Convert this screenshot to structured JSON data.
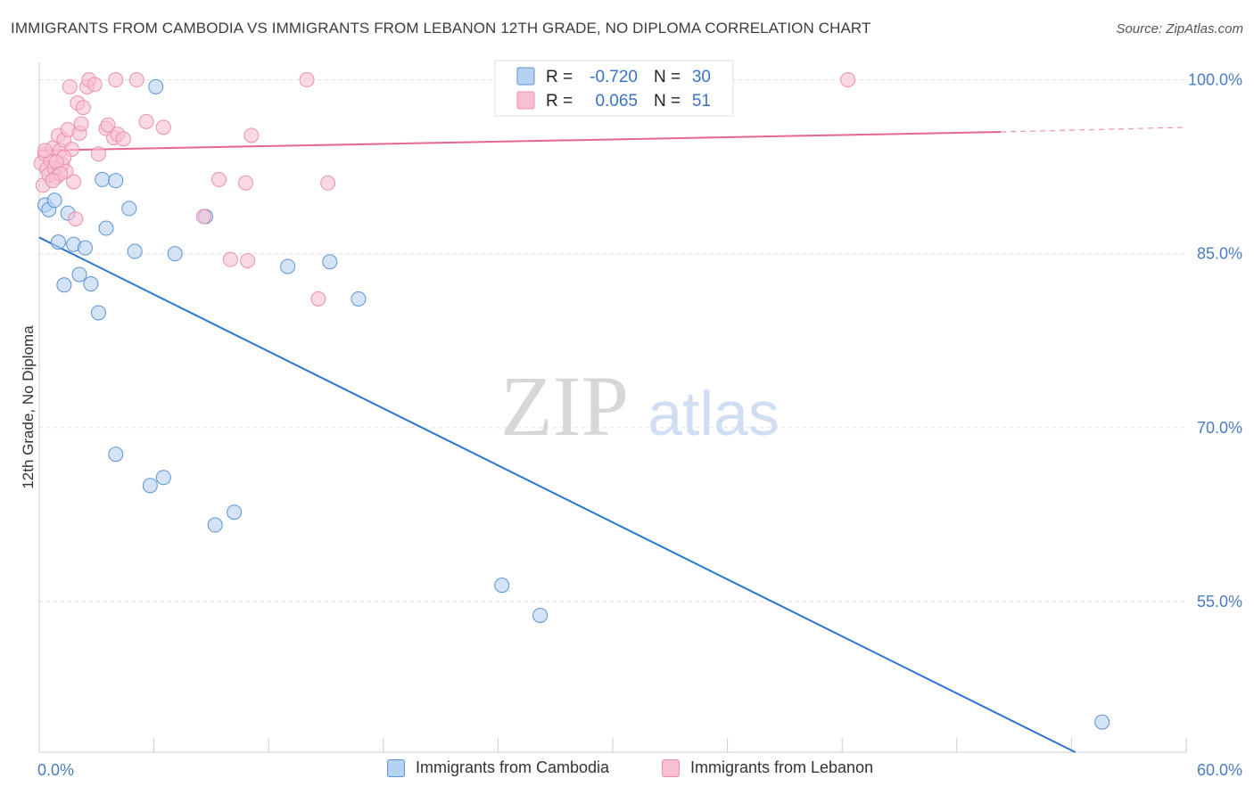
{
  "title": "IMMIGRANTS FROM CAMBODIA VS IMMIGRANTS FROM LEBANON 12TH GRADE, NO DIPLOMA CORRELATION CHART",
  "source": "Source: ZipAtlas.com",
  "watermark": {
    "zip": "ZIP",
    "atlas": "atlas"
  },
  "colors": {
    "cambodia_fill": "#b7d2f0",
    "cambodia_stroke": "#5b93d6",
    "cambodia_line": "#2b74d4",
    "lebanon_fill": "#f6c0d2",
    "lebanon_stroke": "#ec8fae",
    "lebanon_line": "#e5678f",
    "tick_label": "#4a7cc4",
    "grid": "#e0e0e0"
  },
  "legend_top": {
    "rows": [
      {
        "r_label": "R =",
        "r_value": "-0.720",
        "n_label": "N =",
        "n_value": "30"
      },
      {
        "r_label": "R =",
        "r_value": "0.065",
        "n_label": "N =",
        "n_value": "51"
      }
    ]
  },
  "legend_bottom": {
    "items": [
      "Immigrants from Cambodia",
      "Immigrants from Lebanon"
    ]
  },
  "chart_data": {
    "type": "scatter",
    "title": "IMMIGRANTS FROM CAMBODIA VS IMMIGRANTS FROM LEBANON 12TH GRADE, NO DIPLOMA CORRELATION CHART",
    "xlabel": "",
    "ylabel": "12th Grade, No Diploma",
    "xlim": [
      0,
      60
    ],
    "ylim": [
      42,
      101.5
    ],
    "x_tick_labels": [
      "0.0%",
      "60.0%"
    ],
    "y_ticks": [
      55,
      70,
      85,
      100
    ],
    "y_tick_labels": [
      "55.0%",
      "70.0%",
      "85.0%",
      "100.0%"
    ],
    "grid": true,
    "legend_position": "top-center",
    "series": [
      {
        "name": "Immigrants from Cambodia",
        "r": -0.72,
        "n": 30,
        "trend": {
          "x": [
            0,
            54.2
          ],
          "y": [
            86.4,
            42.0
          ]
        },
        "points": [
          {
            "x": 0.3,
            "y": 89.2
          },
          {
            "x": 0.5,
            "y": 88.8
          },
          {
            "x": 0.8,
            "y": 89.6
          },
          {
            "x": 1.0,
            "y": 86.0
          },
          {
            "x": 1.3,
            "y": 82.3
          },
          {
            "x": 1.5,
            "y": 88.5
          },
          {
            "x": 1.8,
            "y": 85.8
          },
          {
            "x": 2.1,
            "y": 83.2
          },
          {
            "x": 2.4,
            "y": 85.5
          },
          {
            "x": 2.7,
            "y": 82.4
          },
          {
            "x": 3.1,
            "y": 79.9
          },
          {
            "x": 3.3,
            "y": 91.4
          },
          {
            "x": 3.5,
            "y": 87.2
          },
          {
            "x": 4.0,
            "y": 91.3
          },
          {
            "x": 4.7,
            "y": 88.9
          },
          {
            "x": 5.0,
            "y": 85.2
          },
          {
            "x": 6.1,
            "y": 99.4
          },
          {
            "x": 7.1,
            "y": 85.0
          },
          {
            "x": 8.7,
            "y": 88.2
          },
          {
            "x": 13.0,
            "y": 83.9
          },
          {
            "x": 15.2,
            "y": 84.3
          },
          {
            "x": 16.7,
            "y": 81.1
          },
          {
            "x": 4.0,
            "y": 67.7
          },
          {
            "x": 5.8,
            "y": 65.0
          },
          {
            "x": 6.5,
            "y": 65.7
          },
          {
            "x": 9.2,
            "y": 61.6
          },
          {
            "x": 10.2,
            "y": 62.7
          },
          {
            "x": 24.2,
            "y": 56.4
          },
          {
            "x": 26.2,
            "y": 53.8
          },
          {
            "x": 55.6,
            "y": 44.6
          }
        ]
      },
      {
        "name": "Immigrants from Lebanon",
        "r": 0.065,
        "n": 51,
        "trend": {
          "x": [
            0,
            50.3
          ],
          "y": [
            93.9,
            95.5
          ]
        },
        "trend_dashed": {
          "x": [
            50.3,
            60
          ],
          "y": [
            95.5,
            95.9
          ]
        },
        "points": [
          {
            "x": 0.1,
            "y": 92.8
          },
          {
            "x": 0.2,
            "y": 90.9
          },
          {
            "x": 0.3,
            "y": 93.6
          },
          {
            "x": 0.4,
            "y": 92.3
          },
          {
            "x": 0.5,
            "y": 91.8
          },
          {
            "x": 0.6,
            "y": 93.0
          },
          {
            "x": 0.7,
            "y": 94.1
          },
          {
            "x": 0.8,
            "y": 92.4
          },
          {
            "x": 0.9,
            "y": 91.6
          },
          {
            "x": 1.0,
            "y": 95.2
          },
          {
            "x": 1.1,
            "y": 93.9
          },
          {
            "x": 1.2,
            "y": 92.7
          },
          {
            "x": 1.3,
            "y": 94.8
          },
          {
            "x": 1.4,
            "y": 92.1
          },
          {
            "x": 1.5,
            "y": 95.7
          },
          {
            "x": 1.6,
            "y": 99.4
          },
          {
            "x": 1.7,
            "y": 94.0
          },
          {
            "x": 1.8,
            "y": 91.2
          },
          {
            "x": 1.9,
            "y": 88.0
          },
          {
            "x": 2.0,
            "y": 98.0
          },
          {
            "x": 2.1,
            "y": 95.4
          },
          {
            "x": 2.2,
            "y": 96.2
          },
          {
            "x": 2.3,
            "y": 97.6
          },
          {
            "x": 2.5,
            "y": 99.4
          },
          {
            "x": 2.6,
            "y": 100.0
          },
          {
            "x": 2.9,
            "y": 99.6
          },
          {
            "x": 3.1,
            "y": 93.6
          },
          {
            "x": 3.5,
            "y": 95.8
          },
          {
            "x": 3.6,
            "y": 96.1
          },
          {
            "x": 3.9,
            "y": 95.0
          },
          {
            "x": 4.0,
            "y": 100.0
          },
          {
            "x": 4.1,
            "y": 95.3
          },
          {
            "x": 4.4,
            "y": 94.9
          },
          {
            "x": 5.1,
            "y": 100.0
          },
          {
            "x": 5.6,
            "y": 96.4
          },
          {
            "x": 6.5,
            "y": 95.9
          },
          {
            "x": 8.6,
            "y": 88.2
          },
          {
            "x": 9.4,
            "y": 91.4
          },
          {
            "x": 10.0,
            "y": 84.5
          },
          {
            "x": 10.8,
            "y": 91.1
          },
          {
            "x": 10.9,
            "y": 84.4
          },
          {
            "x": 11.1,
            "y": 95.2
          },
          {
            "x": 14.0,
            "y": 100.0
          },
          {
            "x": 14.6,
            "y": 81.1
          },
          {
            "x": 15.1,
            "y": 91.1
          },
          {
            "x": 42.3,
            "y": 100.0
          },
          {
            "x": 1.3,
            "y": 93.3
          },
          {
            "x": 0.9,
            "y": 92.9
          },
          {
            "x": 1.1,
            "y": 91.9
          },
          {
            "x": 0.3,
            "y": 93.9
          },
          {
            "x": 0.7,
            "y": 91.3
          }
        ]
      }
    ]
  }
}
